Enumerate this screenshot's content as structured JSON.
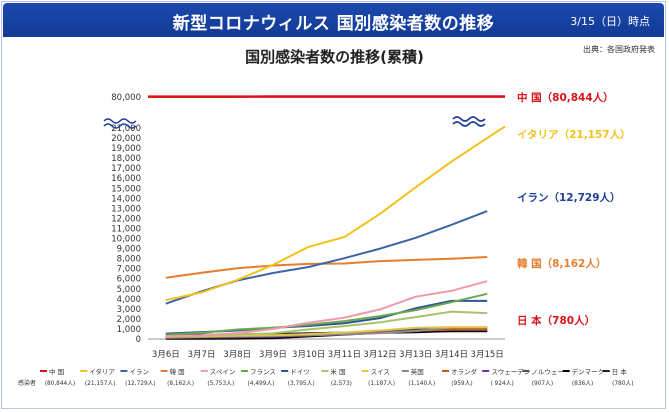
{
  "header": {
    "title": "新型コロナウィルス 国別感染者数の推移",
    "date": "3/15（日）時点"
  },
  "source": "出典：各国政府発表",
  "chart_data": {
    "type": "line",
    "title": "国別感染者数の推移(累積)",
    "x": [
      "3月6日",
      "3月7日",
      "3月8日",
      "3月9日",
      "3月10日",
      "3月11日",
      "3月12日",
      "3月13日",
      "3月14日",
      "3月15日"
    ],
    "y_ticks": [
      0,
      1000,
      2000,
      3000,
      4000,
      5000,
      6000,
      7000,
      8000,
      9000,
      10000,
      11000,
      12000,
      13000,
      14000,
      15000,
      16000,
      17000,
      18000,
      19000,
      20000,
      21000,
      80000
    ],
    "y_tick_labels": [
      "0",
      "1,000",
      "2,000",
      "3,000",
      "4,000",
      "5,000",
      "6,000",
      "7,000",
      "8,000",
      "9,000",
      "10,000",
      "11,000",
      "12,000",
      "13,000",
      "14,000",
      "15,000",
      "16,000",
      "17,000",
      "18,000",
      "19,000",
      "20,000",
      "21,000",
      "80,000"
    ],
    "ylim": [
      0,
      21000
    ],
    "axis_break": true,
    "series": [
      {
        "name": "中 国",
        "color": "#d9141b",
        "values": [
          80552,
          80651,
          80695,
          80735,
          80754,
          80778,
          80793,
          80813,
          80824,
          80844
        ]
      },
      {
        "name": "イタリア",
        "color": "#f2c21b",
        "values": [
          3858,
          4636,
          5883,
          7375,
          9172,
          10149,
          12462,
          15113,
          17660,
          21157
        ]
      },
      {
        "name": "イラン",
        "color": "#3e64a8",
        "values": [
          3513,
          4747,
          5823,
          6566,
          7161,
          8042,
          9000,
          10075,
          11364,
          12729
        ]
      },
      {
        "name": "韓 国",
        "color": "#e67e2e",
        "values": [
          6088,
          6593,
          7041,
          7313,
          7478,
          7513,
          7755,
          7869,
          7979,
          8162
        ]
      },
      {
        "name": "スペイン",
        "color": "#ef9aa8",
        "values": [
          257,
          374,
          589,
          999,
          1622,
          2128,
          2950,
          4209,
          4800,
          5753
        ]
      },
      {
        "name": "フランス",
        "color": "#6aa84f",
        "values": [
          423,
          613,
          949,
          1126,
          1412,
          1784,
          2281,
          2876,
          3661,
          4499
        ]
      },
      {
        "name": "ドイツ",
        "color": "#2f5597",
        "values": [
          534,
          684,
          847,
          1112,
          1296,
          1567,
          2078,
          3062,
          3795,
          3795
        ]
      },
      {
        "name": "米 国",
        "color": "#a9c36b",
        "values": [
          233,
          338,
          445,
          568,
          959,
          1281,
          1663,
          2179,
          2726,
          2573
        ]
      },
      {
        "name": "スイス",
        "color": "#e2c64c",
        "values": [
          214,
          268,
          337,
          374,
          491,
          645,
          858,
          1125,
          1187,
          1187
        ]
      },
      {
        "name": "英国",
        "color": "#8c8c8c",
        "values": [
          163,
          206,
          273,
          321,
          373,
          456,
          590,
          798,
          1140,
          1140
        ]
      },
      {
        "name": "オランダ",
        "color": "#c55a11",
        "values": [
          128,
          188,
          265,
          321,
          382,
          503,
          614,
          804,
          959,
          959
        ]
      },
      {
        "name": "スウェーデン",
        "color": "#7030a0",
        "values": [
          137,
          161,
          203,
          248,
          355,
          500,
          687,
          814,
          924,
          924
        ]
      },
      {
        "name": "ノルウェー",
        "color": "#44546a",
        "values": [
          108,
          147,
          176,
          205,
          400,
          598,
          702,
          996,
          907,
          907
        ]
      },
      {
        "name": "デンマーク",
        "color": "#000000",
        "values": [
          23,
          31,
          35,
          90,
          262,
          442,
          615,
          674,
          801,
          836
        ]
      },
      {
        "name": "日 本",
        "color": "#222222",
        "values": [
          360,
          420,
          461,
          502,
          581,
          639,
          675,
          716,
          780,
          780
        ]
      }
    ],
    "right_annotations": [
      {
        "text": "中 国（80,844人）",
        "color": "#d9141b"
      },
      {
        "text": "イタリア（21,157人）",
        "color": "#f2c21b"
      },
      {
        "text": "イラン（12,729人）",
        "color": "#1f3f9a"
      },
      {
        "text": "韓 国（8,162人）",
        "color": "#e67e2e"
      },
      {
        "text": "日 本（780人）",
        "color": "#d9141b"
      }
    ],
    "legend": [
      {
        "name": "中 国",
        "color": "#d9141b",
        "value": "(80,844人)"
      },
      {
        "name": "イタリア",
        "color": "#f2c21b",
        "value": "(21,157人)"
      },
      {
        "name": "イラン",
        "color": "#3e64a8",
        "value": "(12,729人)"
      },
      {
        "name": "韓 国",
        "color": "#e67e2e",
        "value": "(8,162人)"
      },
      {
        "name": "スペイン",
        "color": "#ef9aa8",
        "value": "(5,753人)"
      },
      {
        "name": "フランス",
        "color": "#6aa84f",
        "value": "(4,499人)"
      },
      {
        "name": "ドイツ",
        "color": "#2f5597",
        "value": "(3,795人)"
      },
      {
        "name": "米 国",
        "color": "#a9c36b",
        "value": "(2,573)"
      },
      {
        "name": "スイス",
        "color": "#e2c64c",
        "value": "(1,187人)"
      },
      {
        "name": "英国",
        "color": "#8c8c8c",
        "value": "(1,140人)"
      },
      {
        "name": "オランダ",
        "color": "#c55a11",
        "value": "(959人)"
      },
      {
        "name": "スウェーデン",
        "color": "#7030a0",
        "value": "( 924人)"
      },
      {
        "name": "ノルウェー",
        "color": "#44546a",
        "value": "(907人)"
      },
      {
        "name": "デンマーク",
        "color": "#000000",
        "value": "(836人)"
      },
      {
        "name": "日 本",
        "color": "#222222",
        "value": "(780人)"
      }
    ],
    "legend_row_label": "感染者",
    "legend_position": "bottom",
    "grid": false
  }
}
